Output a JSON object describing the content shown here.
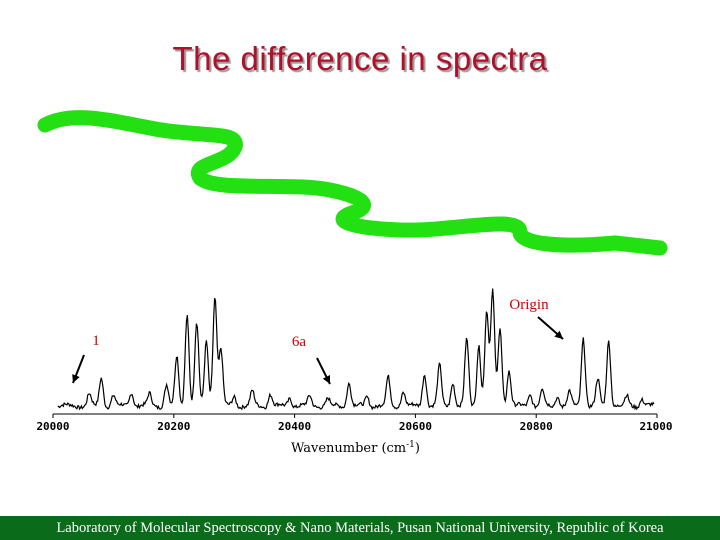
{
  "title": "The difference in spectra",
  "footer": "Laboratory of Molecular Spectroscopy & Nano Materials, Pusan National University, Republic of Korea",
  "colors": {
    "title": "#b0102a",
    "snake": "#22e012",
    "annotation": "#cc0000",
    "footer_bg": "#0a6b1a"
  },
  "chart_data": {
    "type": "line",
    "xlabel": "Wavenumber (cm",
    "xlabel_sup": "-1",
    "xlabel_end": ")",
    "xlim": [
      20000,
      21000
    ],
    "xticks": [
      20000,
      20200,
      20400,
      20600,
      20800,
      21000
    ],
    "yaxis_shown": false,
    "grid": false,
    "peaks": [
      [
        20060,
        0.1
      ],
      [
        20080,
        0.24
      ],
      [
        20100,
        0.09
      ],
      [
        20130,
        0.12
      ],
      [
        20160,
        0.1
      ],
      [
        20188,
        0.18
      ],
      [
        20205,
        0.42
      ],
      [
        20222,
        0.78
      ],
      [
        20238,
        0.7
      ],
      [
        20254,
        0.55
      ],
      [
        20268,
        0.93
      ],
      [
        20278,
        0.48
      ],
      [
        20300,
        0.08
      ],
      [
        20330,
        0.12
      ],
      [
        20360,
        0.1
      ],
      [
        20392,
        0.07
      ],
      [
        20425,
        0.08
      ],
      [
        20455,
        0.06
      ],
      [
        20490,
        0.2
      ],
      [
        20520,
        0.08
      ],
      [
        20555,
        0.24
      ],
      [
        20580,
        0.12
      ],
      [
        20615,
        0.28
      ],
      [
        20640,
        0.34
      ],
      [
        20662,
        0.2
      ],
      [
        20685,
        0.56
      ],
      [
        20705,
        0.52
      ],
      [
        20718,
        0.8
      ],
      [
        20728,
        0.96
      ],
      [
        20740,
        0.66
      ],
      [
        20755,
        0.3
      ],
      [
        20790,
        0.1
      ],
      [
        20810,
        0.14
      ],
      [
        20835,
        0.08
      ],
      [
        20855,
        0.12
      ],
      [
        20878,
        0.58
      ],
      [
        20902,
        0.22
      ],
      [
        20920,
        0.56
      ],
      [
        20950,
        0.08
      ],
      [
        20975,
        0.06
      ]
    ],
    "annotations": [
      {
        "text": "1",
        "x": 20085
      },
      {
        "text": "6a",
        "x": 20460
      },
      {
        "text": "Origin",
        "x": 20878
      }
    ]
  }
}
